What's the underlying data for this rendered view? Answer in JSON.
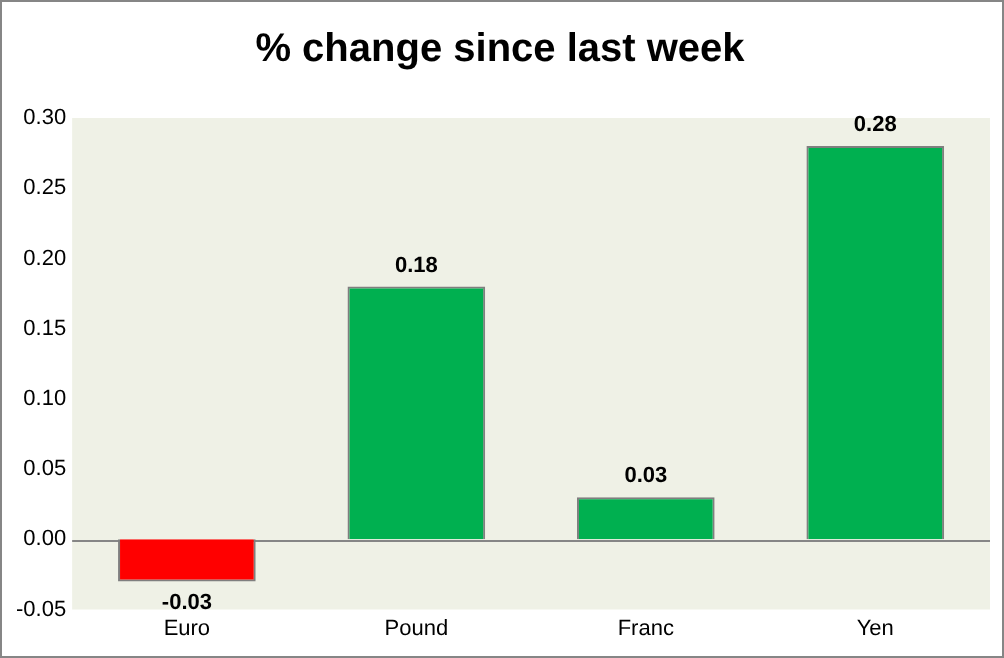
{
  "chart_data": {
    "type": "bar",
    "title": "% change since last week",
    "categories": [
      "Euro",
      "Pound",
      "Franc",
      "Yen"
    ],
    "values": [
      -0.03,
      0.18,
      0.03,
      0.28
    ],
    "colors": [
      "#ff0000",
      "#00b050",
      "#00b050",
      "#00b050"
    ],
    "ylim": [
      -0.05,
      0.3
    ],
    "yticks": [
      {
        "value": -0.05,
        "label": "-0.05"
      },
      {
        "value": 0,
        "label": "0.00"
      },
      {
        "value": 0.05,
        "label": "0.05"
      },
      {
        "value": 0.1,
        "label": "0.10"
      },
      {
        "value": 0.15,
        "label": "0.15"
      },
      {
        "value": 0.2,
        "label": "0.20"
      },
      {
        "value": 0.25,
        "label": "0.25"
      },
      {
        "value": 0.3,
        "label": "0.30"
      }
    ],
    "data_labels": true,
    "legend": false
  }
}
